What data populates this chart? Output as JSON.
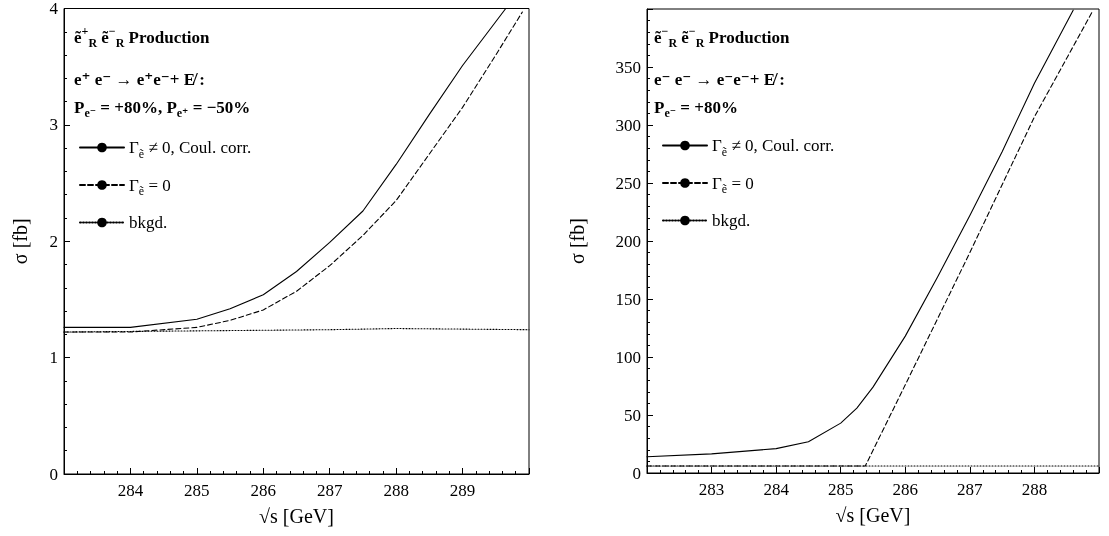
{
  "chart_data": [
    {
      "type": "line",
      "title": "ẽ$^{+}$$_{R}$ ẽ$^{−}$$_{R}$ Production",
      "annotations": [
        "e⁺ e⁻ → e⁺e⁻+ E̸ :",
        "P$_{e⁻}$ = +80%, P$_{e⁺}$ = −50%"
      ],
      "xlabel": "√s [GeV]",
      "ylabel": "σ [fb]",
      "xlim": [
        283,
        290
      ],
      "ylim": [
        0,
        4
      ],
      "xticks": [
        284,
        285,
        286,
        287,
        288,
        289
      ],
      "yticks": [
        0,
        1,
        2,
        3,
        4
      ],
      "grid": false,
      "legend": "top left",
      "marker": "none",
      "series": [
        {
          "name": "Γ$_{ẽ}$ ≠ 0, Coul. corr.",
          "color": "#000000",
          "line_style": "solid",
          "x": [
            283,
            284,
            285,
            285.5,
            286,
            286.5,
            287,
            287.5,
            288,
            288.5,
            289,
            289.65
          ],
          "values": [
            1.26,
            1.26,
            1.33,
            1.42,
            1.54,
            1.74,
            1.99,
            2.26,
            2.66,
            3.09,
            3.51,
            4.0
          ]
        },
        {
          "name": "Γ$_{ẽ}$ = 0",
          "color": "#000000",
          "line_style": "dashed",
          "x": [
            283,
            284,
            285,
            285.5,
            286,
            286.5,
            287,
            287.5,
            288,
            288.5,
            289,
            289.5,
            289.9
          ],
          "values": [
            1.22,
            1.22,
            1.26,
            1.32,
            1.41,
            1.57,
            1.79,
            2.05,
            2.35,
            2.75,
            3.15,
            3.6,
            3.97
          ]
        },
        {
          "name": "bkgd.",
          "color": "#000000",
          "line_style": "dotted",
          "x": [
            283,
            285,
            287,
            288,
            290
          ],
          "values": [
            1.22,
            1.23,
            1.24,
            1.25,
            1.24
          ]
        }
      ]
    },
    {
      "type": "line",
      "title": "ẽ$^{−}$$_{R}$ ẽ$^{−}$$_{R}$ Production",
      "annotations": [
        "e⁻ e⁻ → e⁻e⁻+ E̸ :",
        "P$_{e⁻}$ = +80%"
      ],
      "xlabel": "√s [GeV]",
      "ylabel": "σ [fb]",
      "xlim": [
        282,
        289
      ],
      "ylim": [
        0,
        400
      ],
      "xticks": [
        283,
        284,
        285,
        286,
        287,
        288
      ],
      "yticks": [
        0,
        50,
        100,
        150,
        200,
        250,
        300,
        350
      ],
      "grid": false,
      "legend": "top left",
      "marker": "none",
      "series": [
        {
          "name": "Γ$_{ẽ}$ ≠ 0, Coul. corr.",
          "color": "#000000",
          "line_style": "solid",
          "x": [
            282,
            283,
            284,
            284.5,
            285,
            285.25,
            285.5,
            286,
            286.5,
            287,
            287.5,
            288,
            288.6
          ],
          "values": [
            14,
            16.5,
            21,
            27,
            43,
            56,
            74,
            118,
            169,
            222,
            277,
            336,
            399
          ]
        },
        {
          "name": "Γ$_{ẽ}$ = 0",
          "color": "#000000",
          "line_style": "dashed",
          "x": [
            282,
            285.38,
            286,
            287,
            288,
            288.9
          ],
          "values": [
            6,
            6,
            76,
            190,
            307,
            398
          ]
        },
        {
          "name": "bkgd.",
          "color": "#000000",
          "line_style": "dotted",
          "x": [
            282,
            289
          ],
          "values": [
            6,
            6
          ]
        }
      ]
    }
  ]
}
